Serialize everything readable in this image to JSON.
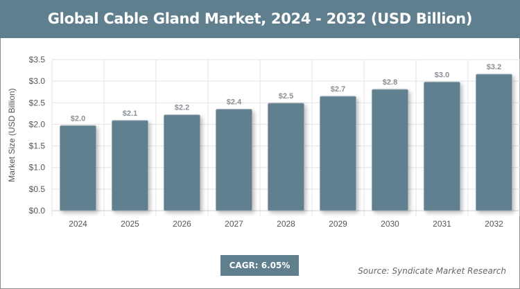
{
  "chart_data": {
    "type": "bar",
    "title": "Global Cable Gland Market, 2024 - 2032 (USD Billion)",
    "xlabel": "",
    "ylabel": "Market Size (USD Billion)",
    "categories": [
      "2024",
      "2025",
      "2026",
      "2027",
      "2028",
      "2029",
      "2030",
      "2031",
      "2032"
    ],
    "values": [
      1.97,
      2.09,
      2.22,
      2.35,
      2.49,
      2.65,
      2.81,
      2.98,
      3.16
    ],
    "data_labels": [
      "$2.0",
      "$2.1",
      "$2.2",
      "$2.4",
      "$2.5",
      "$2.7",
      "$2.8",
      "$3.0",
      "$3.2"
    ],
    "yticks": [
      "$0.0",
      "$0.5",
      "$1.0",
      "$1.5",
      "$2.0",
      "$2.5",
      "$3.0",
      "$3.5"
    ],
    "ylim": [
      0,
      3.5
    ],
    "grid": true,
    "bar_color": "#607f8f"
  },
  "cagr": "CAGR: 6.05%",
  "source": "Source: Syndicate Market Research"
}
